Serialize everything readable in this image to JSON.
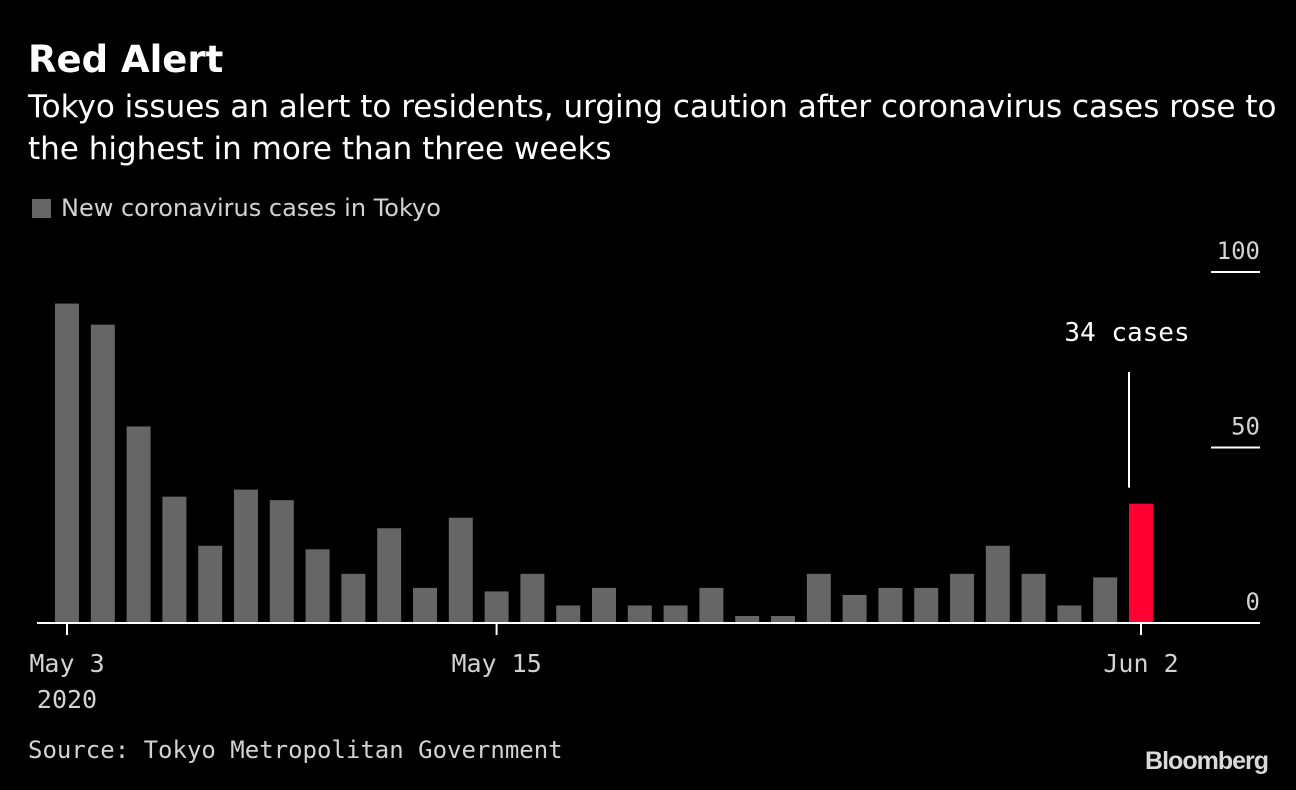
{
  "header": {
    "title": "Red Alert",
    "subtitle": "Tokyo issues an alert to residents, urging caution after coronavirus cases rose to the highest in more than three weeks"
  },
  "legend": {
    "label": "New coronavirus cases in Tokyo"
  },
  "annotation": {
    "label": "34 cases"
  },
  "footer": {
    "source": "Source: Tokyo Metropolitan Government",
    "logo": "Bloomberg"
  },
  "colors": {
    "background": "#000000",
    "bar": "#666666",
    "highlight": "#ff0033",
    "axis": "#ffffff"
  },
  "chart_data": {
    "type": "bar",
    "title": "Red Alert",
    "ylim": [
      0,
      100
    ],
    "y_ticks": [
      "100",
      "50",
      "0"
    ],
    "y_axis_side": "right",
    "x_tick_labels": [
      {
        "label": "May 3",
        "sublabel": "2020",
        "date": "2020-05-03"
      },
      {
        "label": "May 15",
        "date": "2020-05-15"
      },
      {
        "label": "Jun 2",
        "date": "2020-06-02"
      }
    ],
    "legend_position": "top-left",
    "grid": false,
    "series": [
      {
        "name": "New coronavirus cases in Tokyo",
        "x": [
          "2020-05-03",
          "2020-05-04",
          "2020-05-05",
          "2020-05-06",
          "2020-05-07",
          "2020-05-08",
          "2020-05-09",
          "2020-05-10",
          "2020-05-11",
          "2020-05-12",
          "2020-05-13",
          "2020-05-14",
          "2020-05-15",
          "2020-05-16",
          "2020-05-17",
          "2020-05-18",
          "2020-05-19",
          "2020-05-20",
          "2020-05-21",
          "2020-05-22",
          "2020-05-23",
          "2020-05-24",
          "2020-05-25",
          "2020-05-26",
          "2020-05-27",
          "2020-05-28",
          "2020-05-29",
          "2020-05-30",
          "2020-05-31",
          "2020-06-01",
          "2020-06-02"
        ],
        "values": [
          91,
          85,
          56,
          36,
          22,
          38,
          35,
          21,
          14,
          27,
          10,
          30,
          9,
          14,
          5,
          10,
          5,
          5,
          10,
          2,
          2,
          14,
          8,
          10,
          10,
          14,
          22,
          14,
          5,
          13,
          34
        ]
      }
    ],
    "highlight": {
      "date": "2020-06-02",
      "value": 34,
      "label": "34 cases"
    }
  }
}
